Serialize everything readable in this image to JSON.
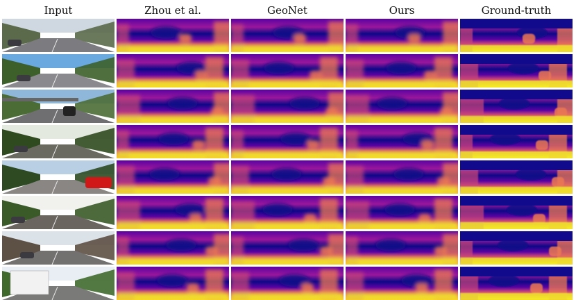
{
  "columns": [
    {
      "label": "Input",
      "kind": "input"
    },
    {
      "label": "Zhou et al.",
      "kind": "depth"
    },
    {
      "label": "GeoNet",
      "kind": "depth"
    },
    {
      "label": "Ours",
      "kind": "depth"
    },
    {
      "label": "Ground-truth",
      "kind": "gt"
    }
  ],
  "rows": [
    {
      "scene": "street-buildings",
      "sky": "#cfd8e0",
      "ground": "#7b7b80",
      "foliage": "#5a6a4a"
    },
    {
      "scene": "residential-road",
      "sky": "#6aa8e0",
      "ground": "#8a8a8e",
      "foliage": "#3d5f2a"
    },
    {
      "scene": "bridge-cars",
      "sky": "#8fb7d9",
      "ground": "#6f6f72",
      "foliage": "#4b6d35"
    },
    {
      "scene": "forest-road",
      "sky": "#e4e9e0",
      "ground": "#6a6a60",
      "foliage": "#2f4a1e"
    },
    {
      "scene": "red-car-street",
      "sky": "#b9cfe4",
      "ground": "#8a8684",
      "foliage": "#2e4a22"
    },
    {
      "scene": "wall-trees",
      "sky": "#f1f1ee",
      "ground": "#6b6560",
      "foliage": "#3a5a28"
    },
    {
      "scene": "city-street",
      "sky": "#dbe2e8",
      "ground": "#737070",
      "foliage": "#5d5044"
    },
    {
      "scene": "white-truck",
      "sky": "#e8eef4",
      "ground": "#7a7a78",
      "foliage": "#3f6a2c"
    }
  ],
  "colors": {
    "depth_far": "#0d0887",
    "depth_mid_far": "#5b02a3",
    "depth_mid": "#9a179b",
    "depth_mid_near": "#cb4678",
    "depth_near_mid": "#eb7852",
    "depth_near": "#fdca26",
    "depth_nearest": "#f0f921",
    "gt_sky": "#120a8c"
  }
}
